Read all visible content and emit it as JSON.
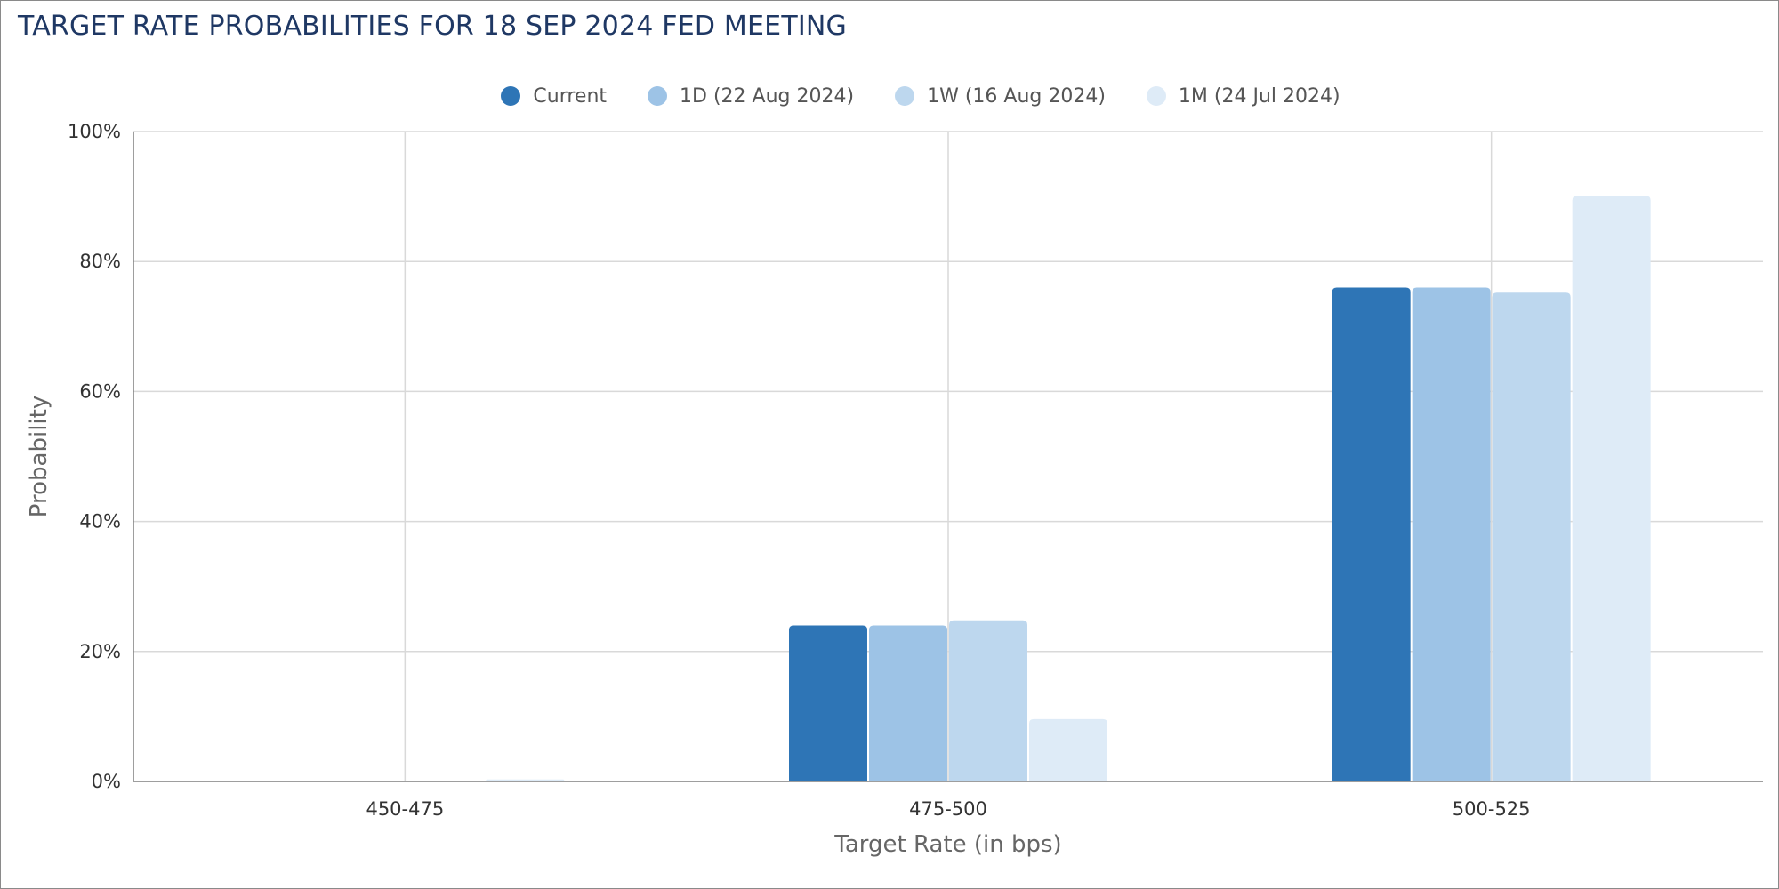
{
  "title": "TARGET RATE PROBABILITIES FOR 18 SEP 2024 FED MEETING",
  "colors": {
    "title": "#1f3864",
    "series": [
      "#2e75b6",
      "#9dc3e6",
      "#bdd7ee",
      "#deebf7"
    ],
    "grid": "#d9d9d9",
    "axis": "#7f7f7f"
  },
  "chart_data": {
    "type": "bar",
    "title": "TARGET RATE PROBABILITIES FOR 18 SEP 2024 FED MEETING",
    "xlabel": "Target Rate (in bps)",
    "ylabel": "Probability",
    "categories": [
      "450-475",
      "475-500",
      "500-525"
    ],
    "series": [
      {
        "name": "Current",
        "values": [
          0,
          24.0,
          76.0
        ]
      },
      {
        "name": "1D (22 Aug 2024)",
        "values": [
          0,
          24.0,
          76.0
        ]
      },
      {
        "name": "1W (16 Aug 2024)",
        "values": [
          0,
          24.8,
          75.2
        ]
      },
      {
        "name": "1M (24 Jul 2024)",
        "values": [
          0.3,
          9.6,
          90.1
        ]
      }
    ],
    "ylim": [
      0,
      100
    ],
    "yticks": [
      0,
      20,
      40,
      60,
      80,
      100
    ],
    "ytick_labels": [
      "0%",
      "20%",
      "40%",
      "60%",
      "80%",
      "100%"
    ],
    "grid": true,
    "legend": "top-center"
  }
}
